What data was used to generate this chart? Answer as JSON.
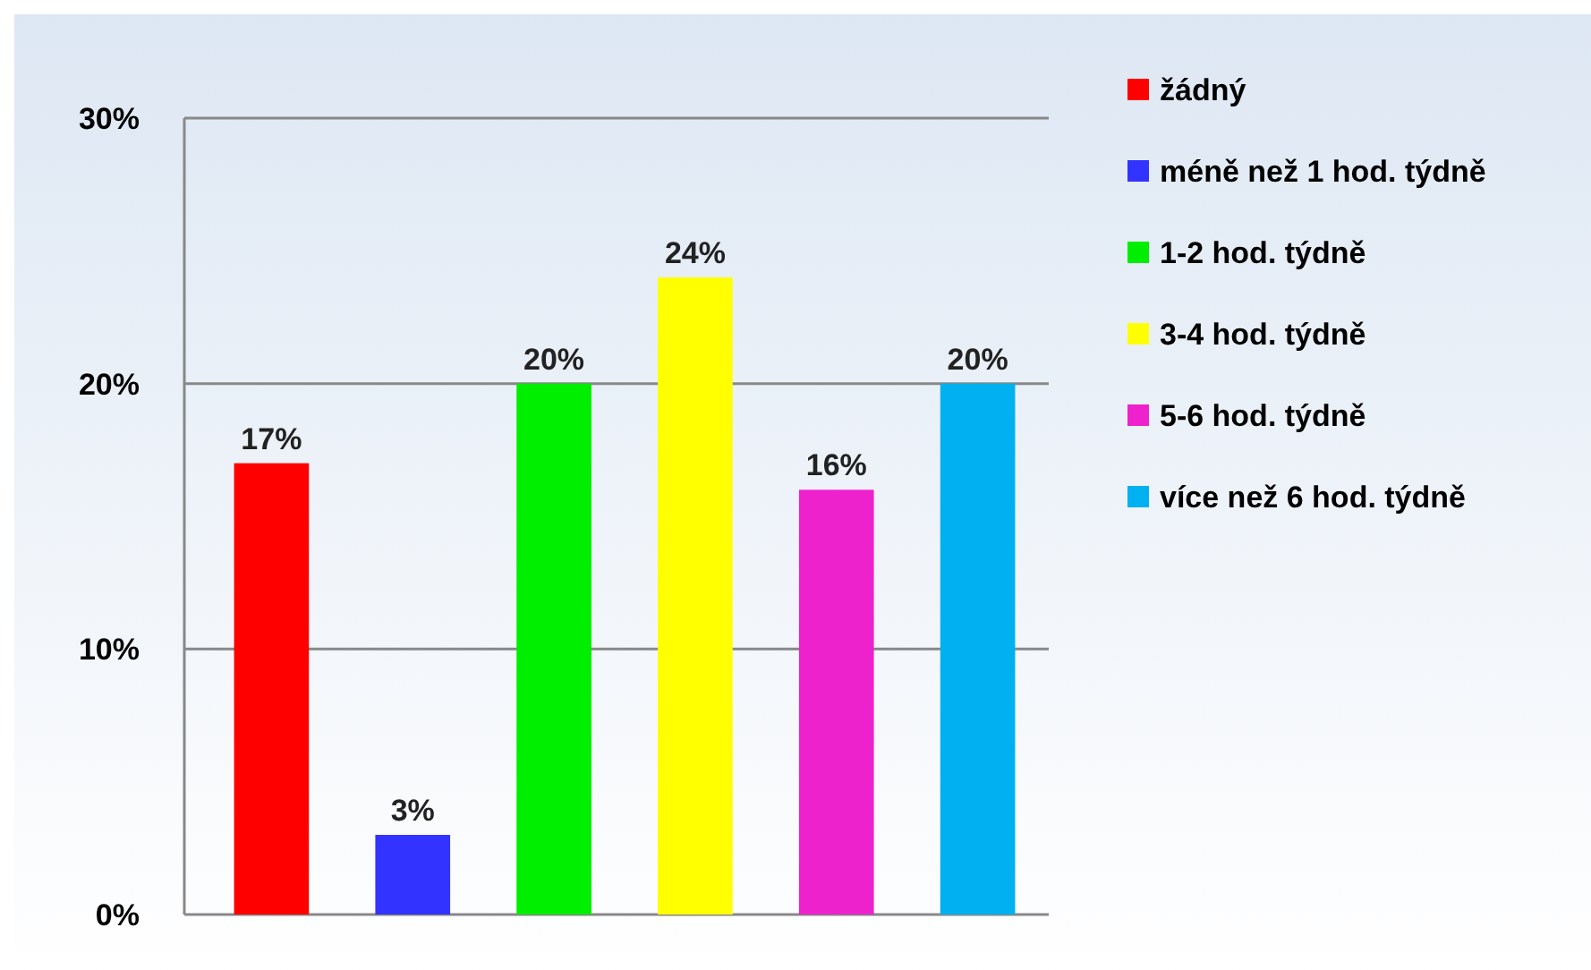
{
  "chart_data": {
    "type": "bar",
    "categories": [
      null,
      null,
      null,
      null,
      null,
      null
    ],
    "series": [
      {
        "name": "žádný",
        "color": "#ff0000",
        "values": [
          17,
          null,
          null,
          null,
          null,
          null
        ],
        "value_labels": [
          "17%",
          null,
          null,
          null,
          null,
          null
        ]
      },
      {
        "name": "méně než 1 hod. týdně",
        "color": "#3333ff",
        "values": [
          null,
          3,
          null,
          null,
          null,
          null
        ],
        "value_labels": [
          null,
          "3%",
          null,
          null,
          null,
          null
        ]
      },
      {
        "name": "1-2 hod. týdně",
        "color": "#00ee00",
        "values": [
          null,
          null,
          20,
          null,
          null,
          null
        ],
        "value_labels": [
          null,
          null,
          "20%",
          null,
          null,
          null
        ]
      },
      {
        "name": "3-4 hod. týdně",
        "color": "#ffff00",
        "values": [
          null,
          null,
          null,
          24,
          null,
          null
        ],
        "value_labels": [
          null,
          null,
          null,
          "24%",
          null,
          null
        ]
      },
      {
        "name": "5-6 hod. týdně",
        "color": "#ee22cc",
        "values": [
          null,
          null,
          null,
          null,
          16,
          null
        ],
        "value_labels": [
          null,
          null,
          null,
          null,
          "16%",
          null
        ]
      },
      {
        "name": "více než 6 hod. týdně",
        "color": "#00b0f0",
        "values": [
          null,
          null,
          null,
          null,
          null,
          20
        ],
        "value_labels": [
          null,
          null,
          null,
          null,
          null,
          "20%"
        ]
      }
    ],
    "ylim": [
      0,
      30
    ],
    "yticks": [
      {
        "value": 0,
        "label": "0%"
      },
      {
        "value": 10,
        "label": "10%"
      },
      {
        "value": 20,
        "label": "20%"
      },
      {
        "value": 30,
        "label": "30%"
      }
    ],
    "grid": "y",
    "legend": "right",
    "tick_labels": "y"
  }
}
